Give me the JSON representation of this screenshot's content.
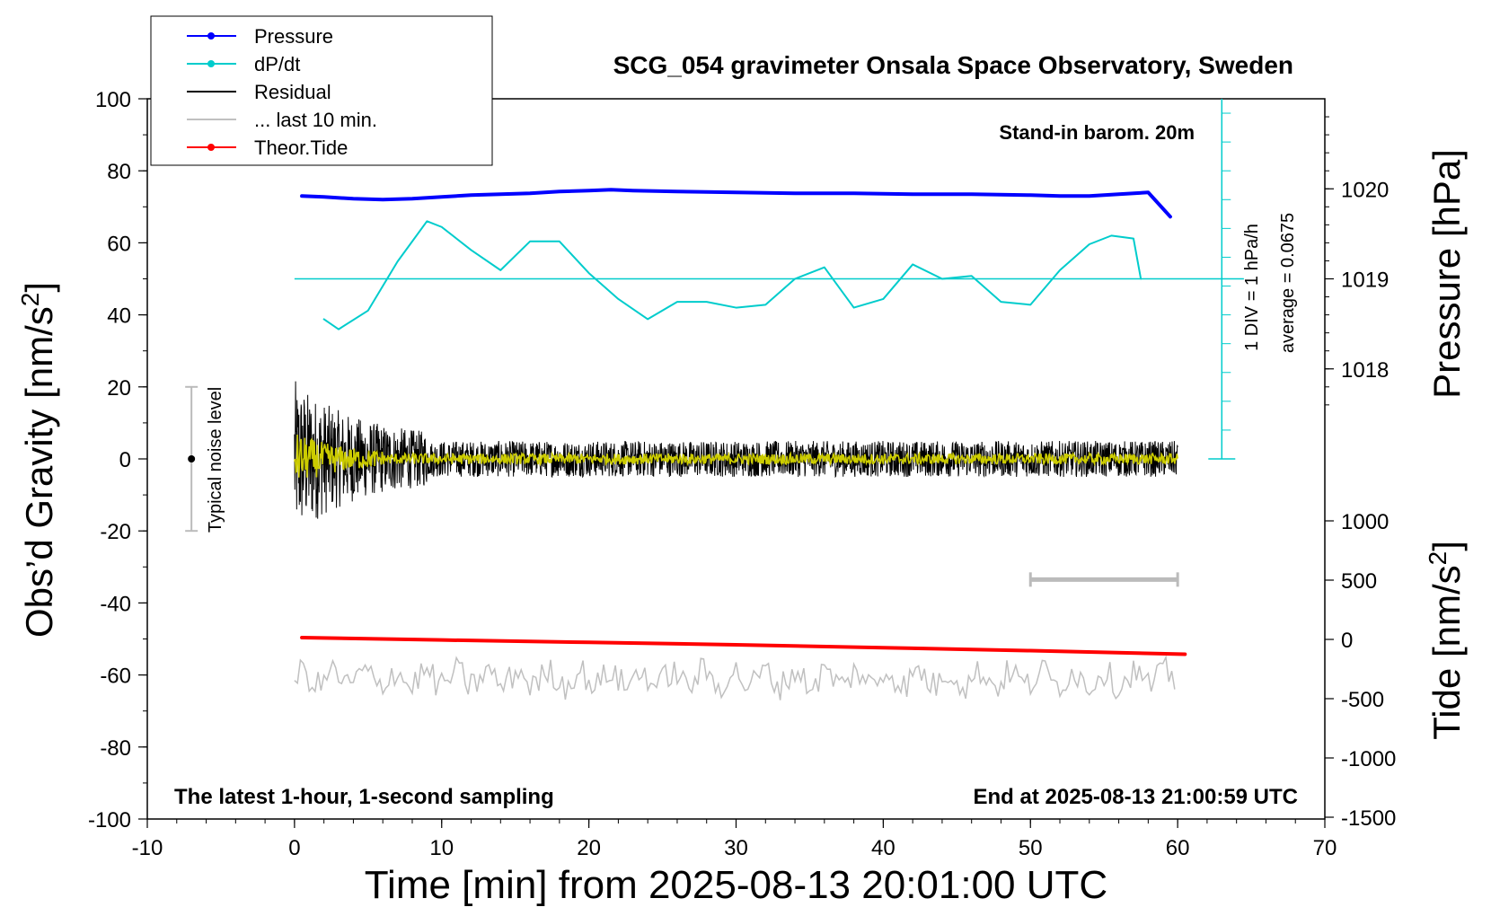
{
  "chart_data": {
    "type": "line",
    "title": "SCG_054 gravimeter Onsala Space Observatory, Sweden",
    "xlabel": "Time [min] from 2025-08-13 20:01:00 UTC",
    "ylabel_left": "Obs’d Gravity [nm/s",
    "ylabel_left_sup": "2",
    "ylabel_left_tail": "]",
    "ylabel_pressure": "Pressure [hPa]",
    "ylabel_tide": "Tide [nm/s",
    "ylabel_tide_sup": "2",
    "ylabel_tide_tail": "]",
    "xlim": [
      -10,
      70
    ],
    "ylim_left": [
      -100,
      100
    ],
    "xticks": [
      "-10",
      "0",
      "10",
      "20",
      "30",
      "40",
      "50",
      "60",
      "70"
    ],
    "yticks_left": [
      "100",
      "80",
      "60",
      "40",
      "20",
      "0",
      "-20",
      "-40",
      "-60",
      "-80",
      "-100"
    ],
    "pressure_ticks": [
      "1020",
      "1019",
      "1018"
    ],
    "tide_ticks": [
      "1000",
      "500",
      "0",
      "-500",
      "-1000",
      "-1500"
    ],
    "annotations": {
      "barometer": "Stand-in barom. 20m",
      "div": "1 DIV = 1 hPa/h",
      "average": "average = 0.0675",
      "noise": "Typical noise level",
      "bottom_left": "The latest 1-hour, 1-second sampling",
      "bottom_right": "End at 2025-08-13 21:00:59 UTC"
    },
    "legend": [
      {
        "label": "Pressure",
        "color": "#0000ff",
        "marker": true
      },
      {
        "label": "dP/dt",
        "color": "#00cccc",
        "marker": true
      },
      {
        "label": "Residual",
        "color": "#000000",
        "marker": false
      },
      {
        "label": "... last 10 min.",
        "color": "#c0c0c0",
        "marker": false
      },
      {
        "label": "Theor.Tide",
        "color": "#ff0000",
        "marker": true
      }
    ],
    "series": [
      {
        "name": "Pressure",
        "color": "#0000ff",
        "unit": "hPa",
        "x": [
          0.5,
          2,
          4,
          6,
          8,
          10,
          12,
          14,
          16,
          18,
          20,
          21.5,
          23,
          26,
          30,
          34,
          38,
          42,
          46,
          50,
          52,
          54,
          56,
          58,
          59.5
        ],
        "y": [
          1019.92,
          1019.91,
          1019.89,
          1019.88,
          1019.89,
          1019.91,
          1019.93,
          1019.94,
          1019.95,
          1019.97,
          1019.98,
          1019.99,
          1019.98,
          1019.97,
          1019.96,
          1019.95,
          1019.95,
          1019.94,
          1019.94,
          1019.93,
          1019.92,
          1019.92,
          1019.94,
          1019.96,
          1019.69
        ]
      },
      {
        "name": "dP/dt",
        "color": "#00cccc",
        "unit": "hPa/h",
        "x": [
          2,
          3,
          5,
          7,
          9,
          10,
          12,
          14,
          16,
          18,
          20,
          22,
          24,
          26,
          28,
          30,
          32,
          34,
          36,
          38,
          40,
          42,
          44,
          46,
          48,
          50,
          52,
          54,
          55.5,
          57,
          57.5
        ],
        "y": [
          -1.4,
          -1.75,
          -1.1,
          0.6,
          2.0,
          1.8,
          1.0,
          0.3,
          1.3,
          1.3,
          0.2,
          -0.7,
          -1.4,
          -0.8,
          -0.8,
          -1.0,
          -0.9,
          0,
          0.4,
          -1.0,
          -0.7,
          0.5,
          0,
          0.1,
          -0.8,
          -0.9,
          0.3,
          1.2,
          1.5,
          1.4,
          0
        ]
      },
      {
        "name": "Theor.Tide",
        "color": "#ff0000",
        "unit": "nm/s2",
        "x": [
          0.5,
          10,
          20,
          30,
          40,
          50,
          60.5
        ],
        "y": [
          15,
          -5,
          -25,
          -45,
          -70,
          -95,
          -125
        ]
      }
    ],
    "grid": false
  }
}
